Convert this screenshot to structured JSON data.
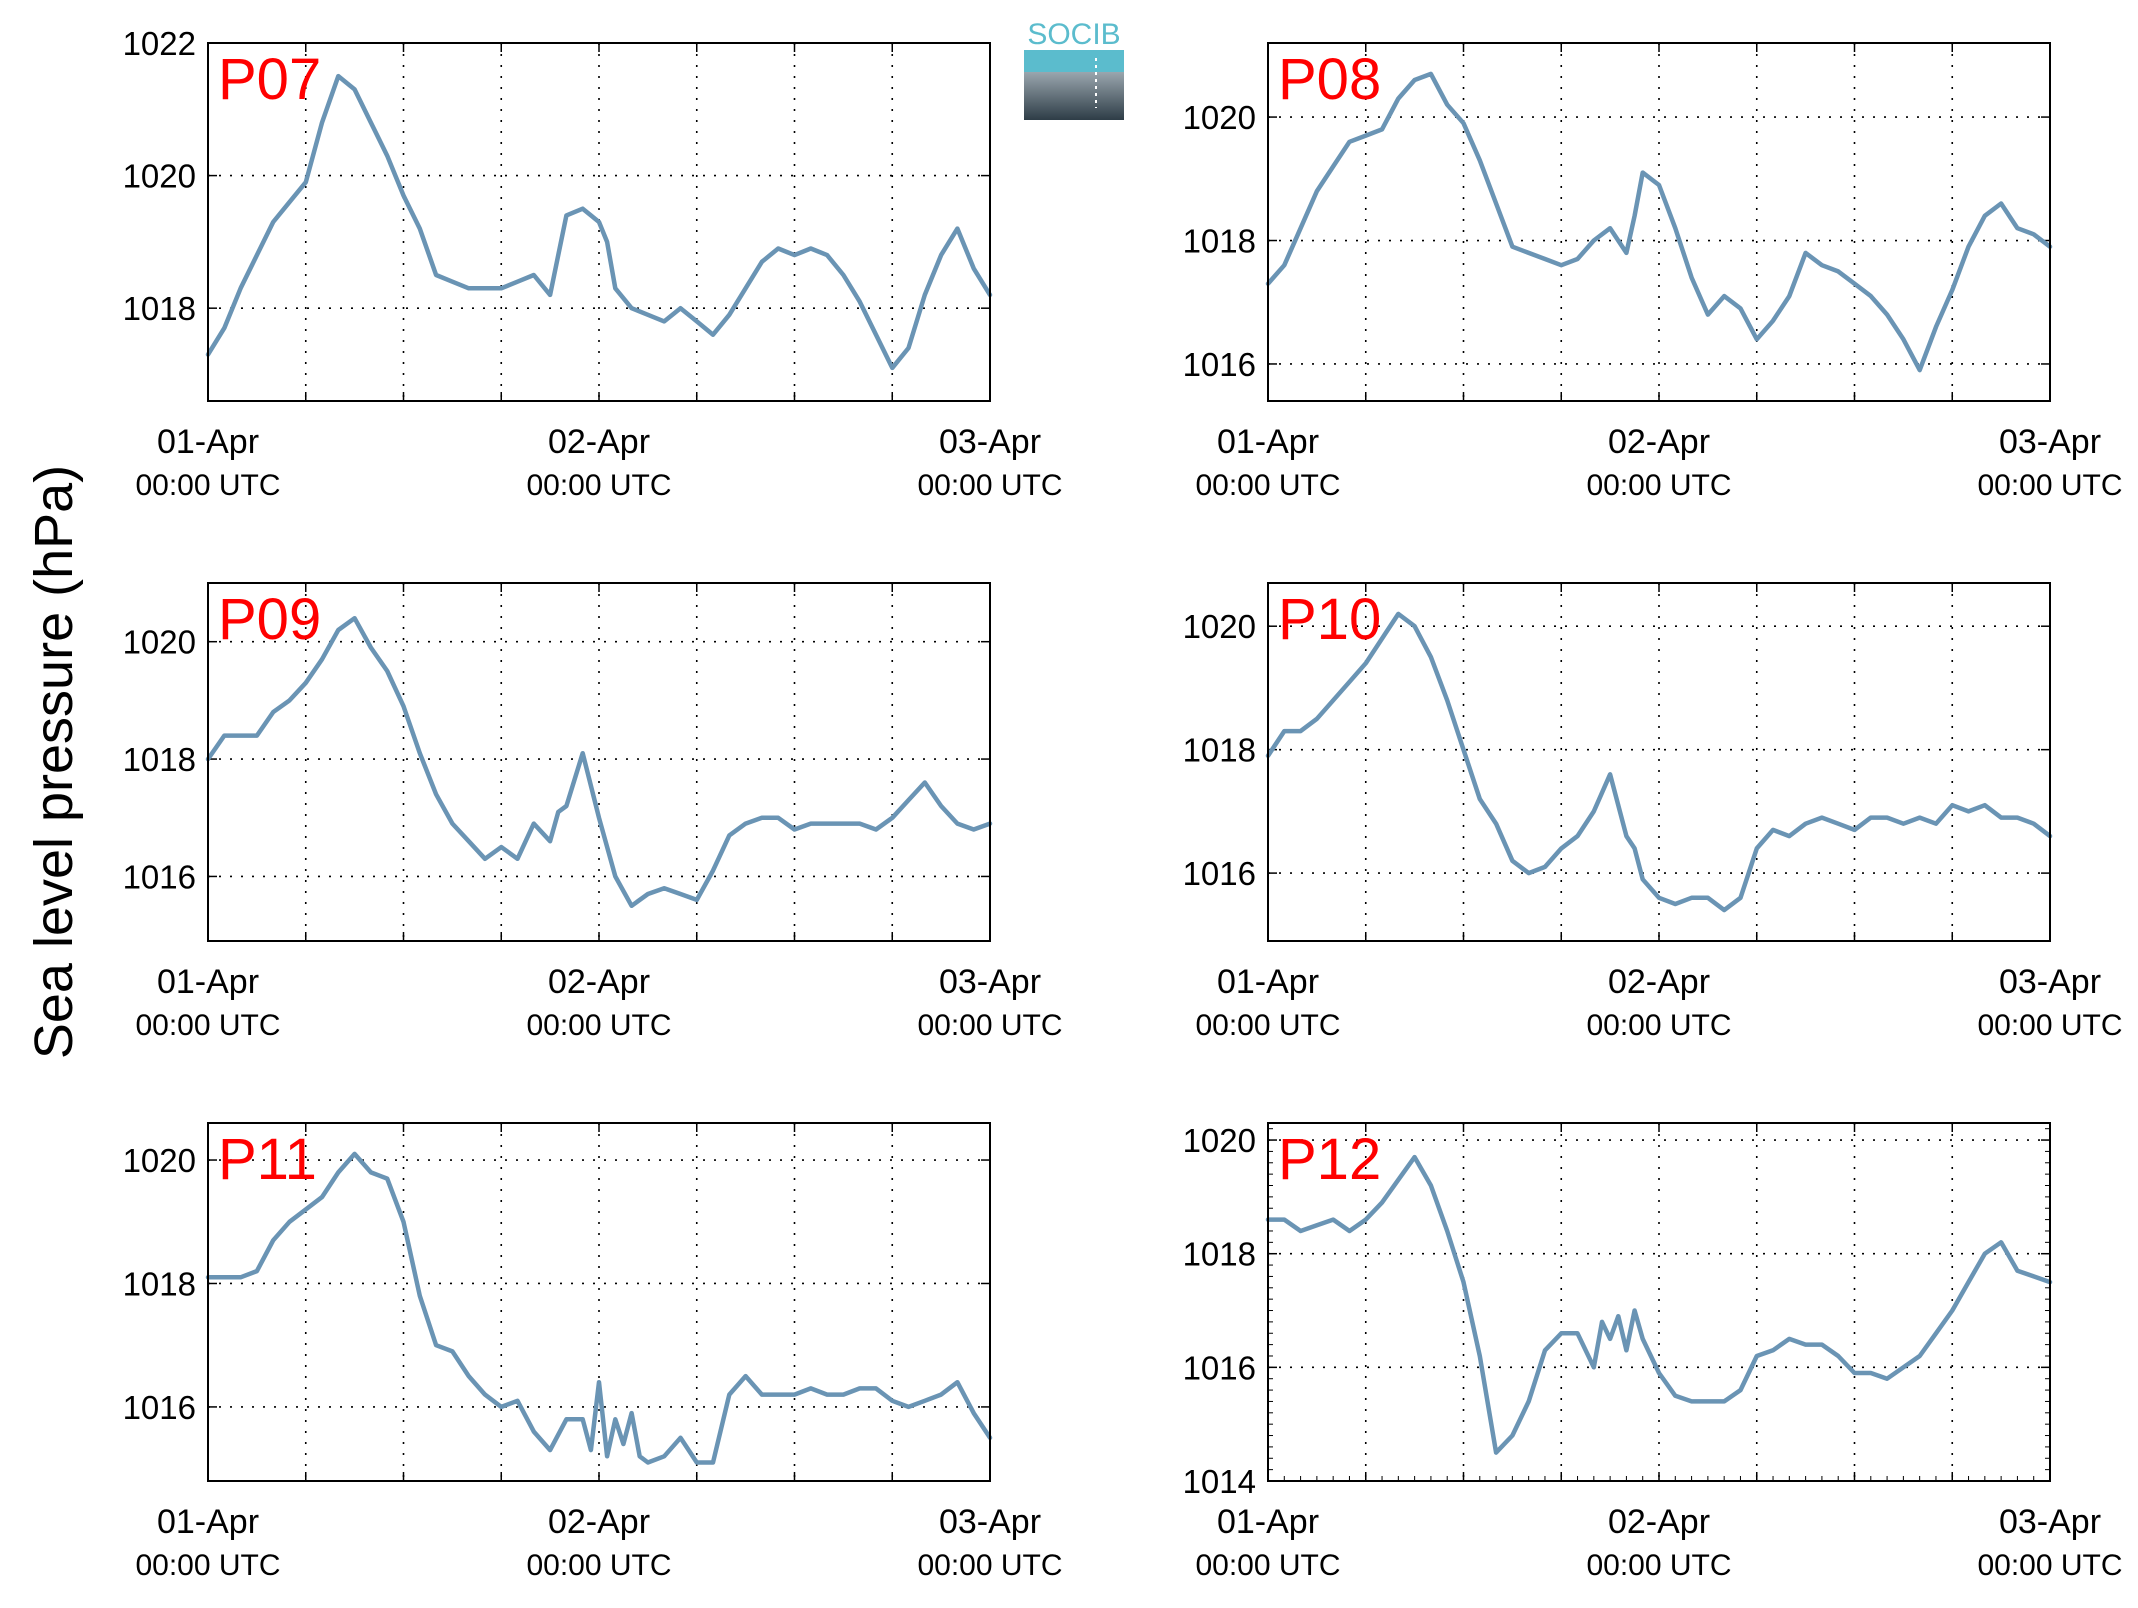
{
  "figure": {
    "ylabel": "Sea level pressure (hPa)",
    "logo_text": "SOCIB",
    "line_color": "#6a94b4",
    "label_color": "#ff0000",
    "logo_color": "#5bbccd"
  },
  "chart_data": [
    {
      "type": "line",
      "panel_label": "P07",
      "ylim": [
        1016.6,
        1022.0
      ],
      "yticks": [
        1018,
        1020,
        1022
      ],
      "xlim": [
        0,
        48
      ],
      "xticks": [
        {
          "date": "01-Apr",
          "time": "00:00 UTC"
        },
        {
          "date": "02-Apr",
          "time": "00:00 UTC"
        },
        {
          "date": "03-Apr",
          "time": "00:00 UTC"
        }
      ],
      "grid": true,
      "x_hours": [
        0,
        1,
        2,
        3,
        4,
        5,
        6,
        7,
        8,
        9,
        10,
        11,
        12,
        13,
        14,
        15,
        16,
        17,
        18,
        19,
        20,
        21,
        22,
        23,
        23.5,
        24,
        24.5,
        25,
        26,
        27,
        28,
        29,
        30,
        31,
        32,
        33,
        34,
        35,
        36,
        37,
        38,
        39,
        40,
        41,
        42,
        43,
        44,
        45,
        46,
        47,
        48
      ],
      "values": [
        1017.3,
        1017.7,
        1018.3,
        1018.8,
        1019.3,
        1019.6,
        1019.9,
        1020.8,
        1021.5,
        1021.3,
        1020.8,
        1020.3,
        1019.7,
        1019.2,
        1018.5,
        1018.4,
        1018.3,
        1018.3,
        1018.3,
        1018.4,
        1018.5,
        1018.2,
        1019.4,
        1019.5,
        1019.4,
        1019.3,
        1019.0,
        1018.3,
        1018.0,
        1017.9,
        1017.8,
        1018.0,
        1017.8,
        1017.6,
        1017.9,
        1018.3,
        1018.7,
        1018.9,
        1018.8,
        1018.9,
        1018.8,
        1018.5,
        1018.1,
        1017.6,
        1017.1,
        1017.4,
        1018.2,
        1018.8,
        1019.2,
        1018.6,
        1018.2
      ]
    },
    {
      "type": "line",
      "panel_label": "P08",
      "ylim": [
        1015.4,
        1021.2
      ],
      "yticks": [
        1016,
        1018,
        1020
      ],
      "xlim": [
        0,
        48
      ],
      "xticks": [
        {
          "date": "01-Apr",
          "time": "00:00 UTC"
        },
        {
          "date": "02-Apr",
          "time": "00:00 UTC"
        },
        {
          "date": "03-Apr",
          "time": "00:00 UTC"
        }
      ],
      "grid": true,
      "x_hours": [
        0,
        1,
        2,
        3,
        4,
        5,
        6,
        7,
        8,
        9,
        10,
        11,
        12,
        13,
        14,
        15,
        16,
        17,
        18,
        19,
        20,
        21,
        22,
        22.5,
        23,
        24,
        25,
        26,
        27,
        28,
        29,
        30,
        31,
        32,
        33,
        34,
        35,
        36,
        37,
        38,
        39,
        40,
        41,
        42,
        43,
        44,
        45,
        46,
        47,
        48
      ],
      "values": [
        1017.3,
        1017.6,
        1018.2,
        1018.8,
        1019.2,
        1019.6,
        1019.7,
        1019.8,
        1020.3,
        1020.6,
        1020.7,
        1020.2,
        1019.9,
        1019.3,
        1018.6,
        1017.9,
        1017.8,
        1017.7,
        1017.6,
        1017.7,
        1018.0,
        1018.2,
        1017.8,
        1018.4,
        1019.1,
        1018.9,
        1018.2,
        1017.4,
        1016.8,
        1017.1,
        1016.9,
        1016.4,
        1016.7,
        1017.1,
        1017.8,
        1017.6,
        1017.5,
        1017.3,
        1017.1,
        1016.8,
        1016.4,
        1015.9,
        1016.6,
        1017.2,
        1017.9,
        1018.4,
        1018.6,
        1018.2,
        1018.1,
        1017.9
      ]
    },
    {
      "type": "line",
      "panel_label": "P09",
      "ylim": [
        1014.9,
        1021.0
      ],
      "yticks": [
        1016,
        1018,
        1020
      ],
      "xlim": [
        0,
        48
      ],
      "xticks": [
        {
          "date": "01-Apr",
          "time": "00:00 UTC"
        },
        {
          "date": "02-Apr",
          "time": "00:00 UTC"
        },
        {
          "date": "03-Apr",
          "time": "00:00 UTC"
        }
      ],
      "grid": true,
      "x_hours": [
        0,
        1,
        2,
        3,
        4,
        5,
        6,
        7,
        8,
        9,
        10,
        11,
        12,
        13,
        14,
        15,
        16,
        17,
        18,
        19,
        20,
        21,
        21.5,
        22,
        23,
        24,
        25,
        26,
        27,
        28,
        29,
        30,
        31,
        32,
        33,
        34,
        35,
        36,
        37,
        38,
        39,
        40,
        41,
        42,
        43,
        44,
        45,
        46,
        47,
        48
      ],
      "values": [
        1018.0,
        1018.4,
        1018.4,
        1018.4,
        1018.8,
        1019.0,
        1019.3,
        1019.7,
        1020.2,
        1020.4,
        1019.9,
        1019.5,
        1018.9,
        1018.1,
        1017.4,
        1016.9,
        1016.6,
        1016.3,
        1016.5,
        1016.3,
        1016.9,
        1016.6,
        1017.1,
        1017.2,
        1018.1,
        1017.0,
        1016.0,
        1015.5,
        1015.7,
        1015.8,
        1015.7,
        1015.6,
        1016.1,
        1016.7,
        1016.9,
        1017.0,
        1017.0,
        1016.8,
        1016.9,
        1016.9,
        1016.9,
        1016.9,
        1016.8,
        1017.0,
        1017.3,
        1017.6,
        1017.2,
        1016.9,
        1016.8,
        1016.9
      ]
    },
    {
      "type": "line",
      "panel_label": "P10",
      "ylim": [
        1014.9,
        1020.7
      ],
      "yticks": [
        1016,
        1018,
        1020
      ],
      "xlim": [
        0,
        48
      ],
      "xticks": [
        {
          "date": "01-Apr",
          "time": "00:00 UTC"
        },
        {
          "date": "02-Apr",
          "time": "00:00 UTC"
        },
        {
          "date": "03-Apr",
          "time": "00:00 UTC"
        }
      ],
      "grid": true,
      "x_hours": [
        0,
        1,
        2,
        3,
        4,
        5,
        6,
        7,
        8,
        9,
        10,
        11,
        12,
        13,
        14,
        15,
        16,
        17,
        18,
        19,
        20,
        21,
        22,
        22.5,
        23,
        24,
        25,
        26,
        27,
        28,
        29,
        30,
        31,
        32,
        33,
        34,
        35,
        36,
        37,
        38,
        39,
        40,
        41,
        42,
        43,
        44,
        45,
        46,
        47,
        48
      ],
      "values": [
        1017.9,
        1018.3,
        1018.3,
        1018.5,
        1018.8,
        1019.1,
        1019.4,
        1019.8,
        1020.2,
        1020.0,
        1019.5,
        1018.8,
        1018.0,
        1017.2,
        1016.8,
        1016.2,
        1016.0,
        1016.1,
        1016.4,
        1016.6,
        1017.0,
        1017.6,
        1016.6,
        1016.4,
        1015.9,
        1015.6,
        1015.5,
        1015.6,
        1015.6,
        1015.4,
        1015.6,
        1016.4,
        1016.7,
        1016.6,
        1016.8,
        1016.9,
        1016.8,
        1016.7,
        1016.9,
        1016.9,
        1016.8,
        1016.9,
        1016.8,
        1017.1,
        1017.0,
        1017.1,
        1016.9,
        1016.9,
        1016.8,
        1016.6
      ]
    },
    {
      "type": "line",
      "panel_label": "P11",
      "ylim": [
        1014.8,
        1020.6
      ],
      "yticks": [
        1016,
        1018,
        1020
      ],
      "xlim": [
        0,
        48
      ],
      "xticks": [
        {
          "date": "01-Apr",
          "time": "00:00 UTC"
        },
        {
          "date": "02-Apr",
          "time": "00:00 UTC"
        },
        {
          "date": "03-Apr",
          "time": "00:00 UTC"
        }
      ],
      "grid": true,
      "x_hours": [
        0,
        1,
        2,
        3,
        4,
        5,
        6,
        7,
        8,
        9,
        10,
        11,
        12,
        13,
        14,
        15,
        16,
        17,
        18,
        19,
        20,
        21,
        22,
        23,
        23.5,
        24,
        24.5,
        25,
        25.5,
        26,
        26.5,
        27,
        28,
        29,
        30,
        31,
        32,
        33,
        34,
        35,
        36,
        37,
        38,
        39,
        40,
        41,
        42,
        43,
        44,
        45,
        46,
        47,
        48
      ],
      "values": [
        1018.1,
        1018.1,
        1018.1,
        1018.2,
        1018.7,
        1019.0,
        1019.2,
        1019.4,
        1019.8,
        1020.1,
        1019.8,
        1019.7,
        1019.0,
        1017.8,
        1017.0,
        1016.9,
        1016.5,
        1016.2,
        1016.0,
        1016.1,
        1015.6,
        1015.3,
        1015.8,
        1015.8,
        1015.3,
        1016.4,
        1015.2,
        1015.8,
        1015.4,
        1015.9,
        1015.2,
        1015.1,
        1015.2,
        1015.5,
        1015.1,
        1015.1,
        1016.2,
        1016.5,
        1016.2,
        1016.2,
        1016.2,
        1016.3,
        1016.2,
        1016.2,
        1016.3,
        1016.3,
        1016.1,
        1016.0,
        1016.1,
        1016.2,
        1016.4,
        1015.9,
        1015.5
      ]
    },
    {
      "type": "line",
      "panel_label": "P12",
      "ylim": [
        1014.0,
        1020.3
      ],
      "yticks": [
        1014,
        1016,
        1018,
        1020
      ],
      "xlim": [
        0,
        48
      ],
      "xticks": [
        {
          "date": "01-Apr",
          "time": "00:00 UTC"
        },
        {
          "date": "02-Apr",
          "time": "00:00 UTC"
        },
        {
          "date": "03-Apr",
          "time": "00:00 UTC"
        }
      ],
      "grid": true,
      "x_hours": [
        0,
        1,
        2,
        3,
        4,
        5,
        6,
        7,
        8,
        9,
        10,
        11,
        12,
        13,
        14,
        15,
        16,
        17,
        18,
        19,
        20,
        20.5,
        21,
        21.5,
        22,
        22.5,
        23,
        24,
        25,
        26,
        27,
        28,
        29,
        30,
        31,
        32,
        33,
        34,
        35,
        36,
        37,
        38,
        39,
        40,
        41,
        42,
        43,
        44,
        45,
        46,
        47,
        48
      ],
      "values": [
        1018.6,
        1018.6,
        1018.4,
        1018.5,
        1018.6,
        1018.4,
        1018.6,
        1018.9,
        1019.3,
        1019.7,
        1019.2,
        1018.4,
        1017.5,
        1016.2,
        1014.5,
        1014.8,
        1015.4,
        1016.3,
        1016.6,
        1016.6,
        1016.0,
        1016.8,
        1016.5,
        1016.9,
        1016.3,
        1017.0,
        1016.5,
        1015.9,
        1015.5,
        1015.4,
        1015.4,
        1015.4,
        1015.6,
        1016.2,
        1016.3,
        1016.5,
        1016.4,
        1016.4,
        1016.2,
        1015.9,
        1015.9,
        1015.8,
        1016.0,
        1016.2,
        1016.6,
        1017.0,
        1017.5,
        1018.0,
        1018.2,
        1017.7,
        1017.6,
        1017.5
      ]
    }
  ]
}
